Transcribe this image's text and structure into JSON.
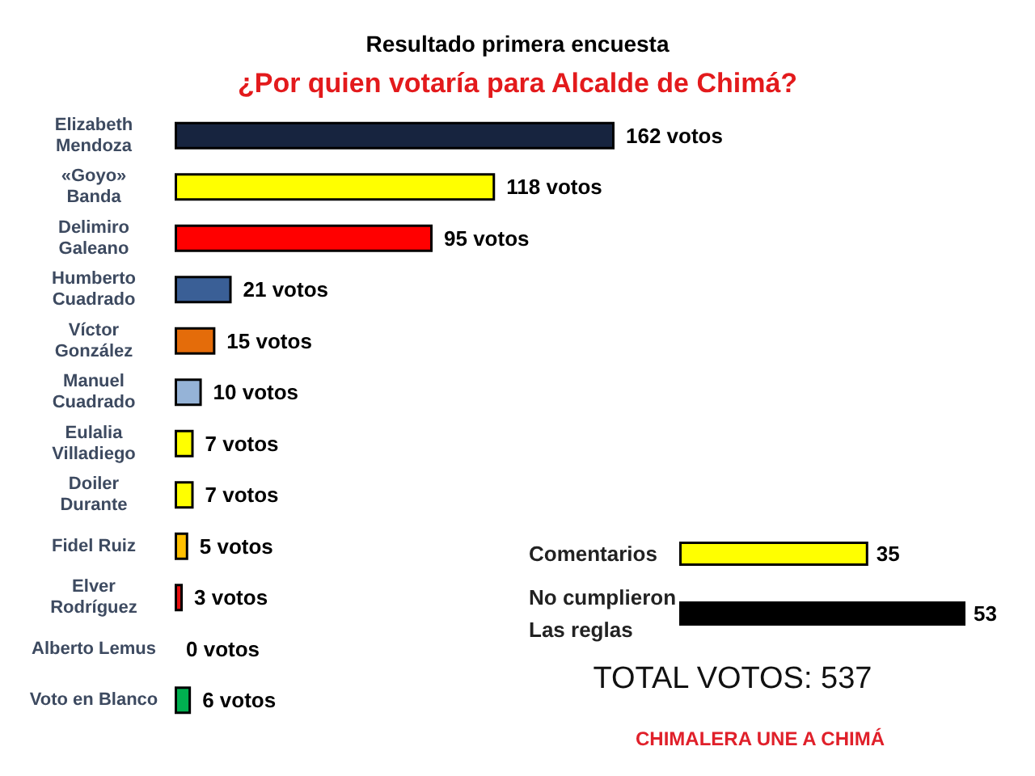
{
  "chart_data": [
    {
      "type": "bar",
      "title": "Resultado primera encuesta",
      "subtitle": "¿Por quien votaría para Alcalde de Chimá?",
      "orientation": "horizontal",
      "categories": [
        "Elizabeth\nMendoza",
        "«Goyo»\nBanda",
        "Delimiro\nGaleano",
        "Humberto\nCuadrado",
        "Víctor\nGonzález",
        "Manuel\nCuadrado",
        "Eulalia\nVilladiego",
        "Doiler\nDurante",
        "Fidel Ruiz",
        "Elver\nRodríguez",
        "Alberto Lemus",
        "Voto en Blanco"
      ],
      "values": [
        162,
        118,
        95,
        21,
        15,
        10,
        7,
        7,
        5,
        3,
        0,
        6
      ],
      "colors": [
        "#17243f",
        "#ffff00",
        "#ff0000",
        "#3a5f96",
        "#e46c0a",
        "#95b3d7",
        "#ffff00",
        "#ffff00",
        "#ffc000",
        "#e81010",
        null,
        "#00b050"
      ],
      "value_labels": [
        "162 votos",
        "118 votos",
        "95 votos",
        "21 votos",
        "15 votos",
        "10 votos",
        "7 votos",
        "7 votos",
        "5 votos",
        "3 votos",
        "0 votos",
        "6 votos"
      ],
      "tick_labels": "y"
    },
    {
      "type": "bar",
      "orientation": "horizontal",
      "categories": [
        "Comentarios",
        "No cumplieron\nLas reglas"
      ],
      "values": [
        35,
        53
      ],
      "colors": [
        "#ffff00",
        "#000000"
      ],
      "data_labels": true,
      "tick_labels": "y",
      "annotations": [
        "TOTAL VOTOS: 537",
        "CHIMALERA UNE A CHIMÁ"
      ]
    }
  ]
}
